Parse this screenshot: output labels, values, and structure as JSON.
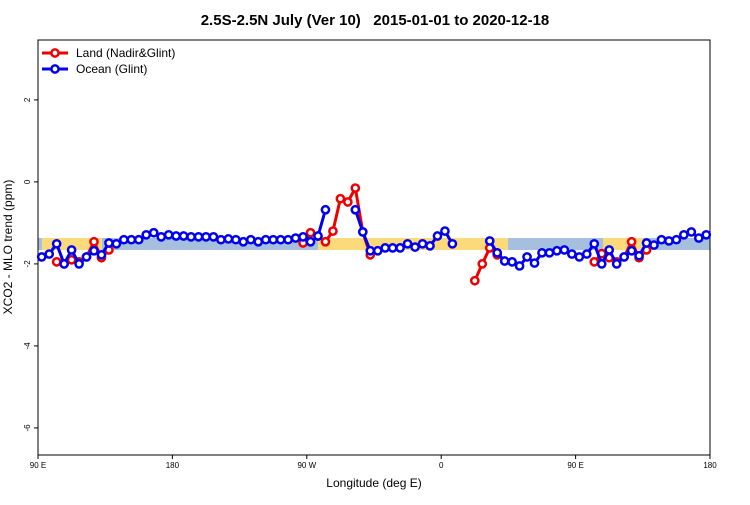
{
  "chart_data": {
    "type": "line",
    "title": "2.5S-2.5N July (Ver 10)   2015-01-01 to 2020-12-18",
    "x_label": "Longitude (deg E)",
    "y_label": "XCO2 - MLO trend (ppm)",
    "x": [
      92.5,
      97.5,
      102.5,
      107.5,
      112.5,
      117.5,
      122.5,
      127.5,
      132.5,
      137.5,
      142.5,
      147.5,
      152.5,
      157.5,
      162.5,
      167.5,
      172.5,
      177.5,
      182.5,
      187.5,
      192.5,
      197.5,
      202.5,
      207.5,
      212.5,
      217.5,
      222.5,
      227.5,
      232.5,
      237.5,
      242.5,
      247.5,
      252.5,
      257.5,
      262.5,
      267.5,
      272.5,
      277.5,
      282.5,
      287.5,
      292.5,
      297.5,
      302.5,
      307.5,
      312.5,
      317.5,
      322.5,
      327.5,
      332.5,
      337.5,
      342.5,
      347.5,
      352.5,
      357.5,
      362.5,
      367.5,
      372.5,
      377.5,
      382.5,
      387.5,
      392.5,
      397.5,
      402.5,
      407.5,
      412.5,
      417.5,
      422.5,
      427.5,
      432.5,
      437.5,
      442.5,
      447.5,
      452.5,
      457.5,
      462.5,
      467.5,
      472.5,
      477.5,
      482.5,
      487.5,
      492.5,
      497.5,
      502.5,
      507.5,
      512.5,
      517.5,
      522.5,
      527.5,
      532.5,
      537.5
    ],
    "series": [
      {
        "name": "Land (Nadir&Glint)",
        "color": "#ee0000",
        "values": [
          null,
          null,
          -1.95,
          -2.0,
          -1.9,
          -1.95,
          -1.83,
          -1.46,
          -1.85,
          -1.66,
          null,
          null,
          null,
          null,
          null,
          null,
          null,
          null,
          null,
          null,
          null,
          null,
          null,
          null,
          null,
          null,
          null,
          null,
          null,
          null,
          null,
          null,
          null,
          null,
          null,
          -1.49,
          -1.24,
          -1.32,
          -1.46,
          -1.2,
          -0.41,
          -0.49,
          -0.15,
          -1.22,
          -1.78,
          null,
          null,
          null,
          null,
          null,
          null,
          null,
          null,
          null,
          null,
          null,
          null,
          null,
          -2.41,
          -2.0,
          -1.61,
          -1.78,
          null,
          null,
          null,
          null,
          null,
          null,
          null,
          null,
          null,
          null,
          null,
          null,
          -1.95,
          -1.75,
          -1.85,
          -1.95,
          -1.83,
          -1.46,
          -1.85,
          -1.66,
          null,
          null,
          null,
          null,
          null,
          null,
          null,
          null
        ]
      },
      {
        "name": "Ocean (Glint)",
        "color": "#0000ee",
        "values": [
          -1.83,
          -1.76,
          -1.51,
          -2.0,
          -1.66,
          -2.0,
          -1.83,
          -1.68,
          -1.78,
          -1.49,
          -1.51,
          -1.41,
          -1.41,
          -1.41,
          -1.29,
          -1.24,
          -1.34,
          -1.29,
          -1.32,
          -1.32,
          -1.34,
          -1.34,
          -1.34,
          -1.34,
          -1.41,
          -1.39,
          -1.41,
          -1.46,
          -1.41,
          -1.46,
          -1.41,
          -1.41,
          -1.41,
          -1.41,
          -1.37,
          -1.34,
          -1.46,
          -1.32,
          -0.68,
          null,
          null,
          null,
          -0.68,
          -1.22,
          -1.68,
          -1.68,
          -1.61,
          -1.61,
          -1.61,
          -1.51,
          -1.59,
          -1.51,
          -1.56,
          -1.32,
          -1.2,
          -1.51,
          null,
          null,
          null,
          null,
          -1.44,
          -1.73,
          -1.93,
          -1.95,
          -2.05,
          -1.83,
          -1.98,
          -1.73,
          -1.73,
          -1.68,
          -1.66,
          -1.76,
          -1.83,
          -1.76,
          -1.51,
          -2.0,
          -1.66,
          -2.0,
          -1.83,
          -1.68,
          -1.8,
          -1.49,
          -1.54,
          -1.41,
          -1.44,
          -1.41,
          -1.29,
          -1.22,
          -1.37,
          -1.29
        ]
      }
    ],
    "xlim": [
      90,
      540
    ],
    "xticks": [
      {
        "value": 90,
        "label": "90 E"
      },
      {
        "value": 180,
        "label": "180"
      },
      {
        "value": 270,
        "label": "90 W"
      },
      {
        "value": 360,
        "label": "0"
      },
      {
        "value": 450,
        "label": "90 E"
      },
      {
        "value": 540,
        "label": "180"
      }
    ],
    "ylim": [
      -6.66,
      3.46
    ],
    "yticks": [
      2,
      0,
      -2,
      -4,
      -6
    ],
    "grid": false,
    "legend": "top-left"
  }
}
